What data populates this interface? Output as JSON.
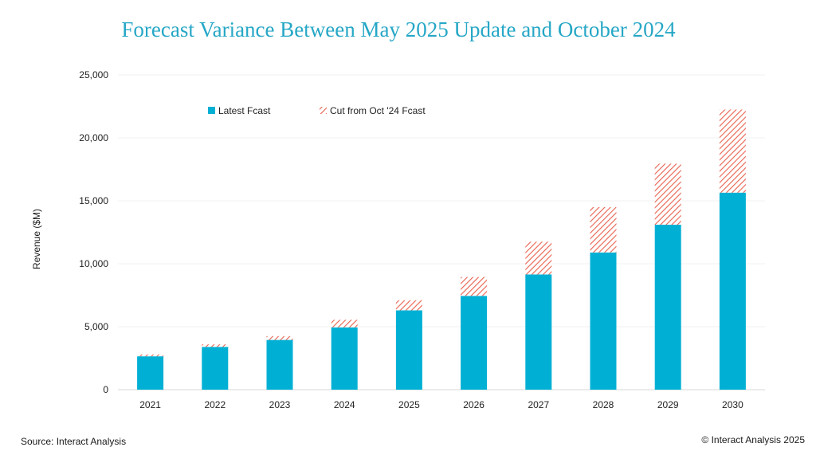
{
  "chart_data": {
    "type": "bar",
    "stacked": true,
    "title": "Forecast Variance Between May 2025 Update and October 2024",
    "xlabel": "",
    "ylabel": "Revenue ($M)",
    "ylim": [
      0,
      25000
    ],
    "yticks": [
      0,
      5000,
      10000,
      15000,
      20000,
      25000
    ],
    "ytick_labels": [
      "0",
      "5,000",
      "10,000",
      "15,000",
      "20,000",
      "25,000"
    ],
    "grid": true,
    "legend_position": "top-left",
    "categories": [
      "2021",
      "2022",
      "2023",
      "2024",
      "2025",
      "2026",
      "2027",
      "2028",
      "2029",
      "2030"
    ],
    "series": [
      {
        "name": "Latest Fcast",
        "style": "solid",
        "color": "#00b0d4",
        "values": [
          2650,
          3400,
          3950,
          4950,
          6300,
          7450,
          9150,
          10900,
          13100,
          15650
        ]
      },
      {
        "name": "Cut from Oct '24 Fcast",
        "style": "hatched",
        "color": "#e8614e",
        "values": [
          150,
          200,
          300,
          600,
          800,
          1500,
          2600,
          3600,
          4850,
          6600
        ]
      }
    ]
  },
  "footer": {
    "source": "Source: Interact Analysis",
    "copyright": "© Interact Analysis 2025"
  }
}
